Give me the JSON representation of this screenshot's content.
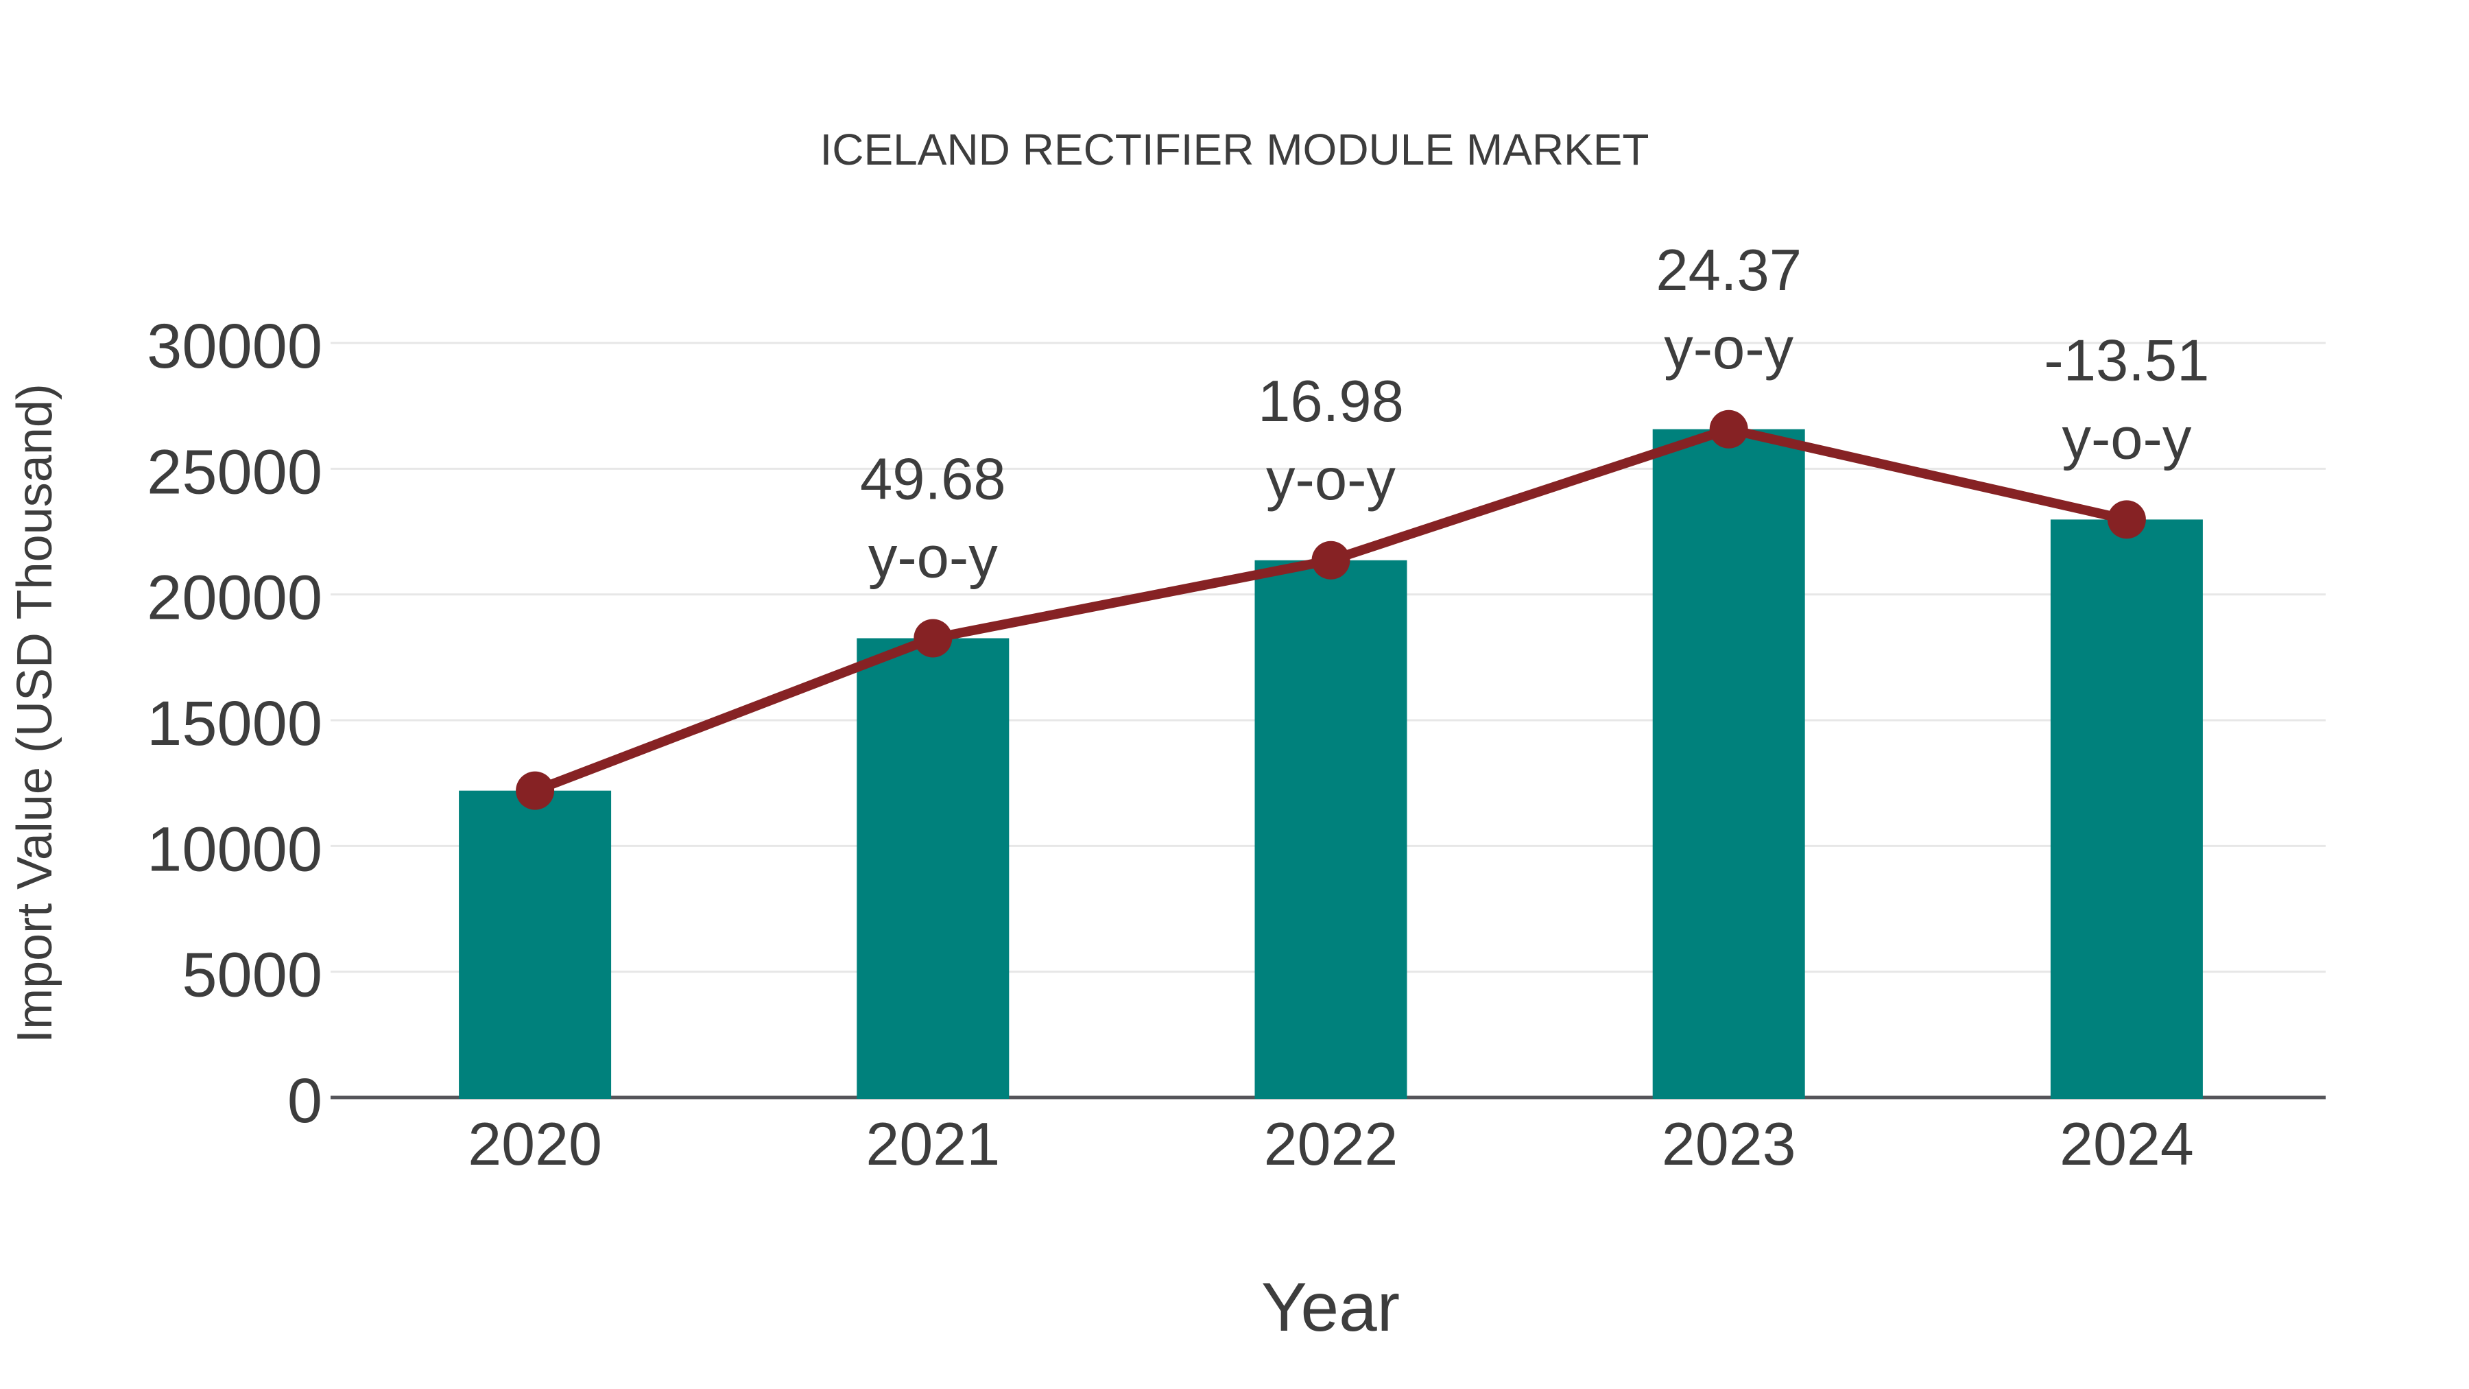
{
  "page": {
    "background": "#ffffff"
  },
  "chart_data": {
    "type": "bar",
    "title": "ICELAND RECTIFIER MODULE MARKET",
    "xlabel": "Year",
    "ylabel": "Import Value (USD Thousand)",
    "categories": [
      "2020",
      "2021",
      "2022",
      "2023",
      "2024"
    ],
    "series": [
      {
        "name": "Import Value bars",
        "chart": "bar",
        "color": "#00817c",
        "values": [
          12200,
          18260,
          21360,
          26570,
          22980
        ]
      },
      {
        "name": "Import Value trend line with markers",
        "chart": "line",
        "color": "#862224",
        "values": [
          12200,
          18260,
          21360,
          26570,
          22980
        ]
      }
    ],
    "annotations": [
      {
        "category": "2021",
        "line1": "49.68",
        "line2": "y-o-y"
      },
      {
        "category": "2022",
        "line1": "16.98",
        "line2": "y-o-y"
      },
      {
        "category": "2023",
        "line1": "24.37",
        "line2": "y-o-y"
      },
      {
        "category": "2024",
        "line1": "-13.51",
        "line2": "y-o-y"
      }
    ],
    "ylim": [
      0,
      30000
    ],
    "yticks": [
      0,
      5000,
      10000,
      15000,
      20000,
      25000,
      30000
    ],
    "grid": "horizontal",
    "legend": "none",
    "colors": {
      "bar": "#00817c",
      "line": "#862224",
      "marker": "#862224",
      "text": "#3d3d3d",
      "grid": "#e7e7e7",
      "axis": "#55555a"
    }
  }
}
